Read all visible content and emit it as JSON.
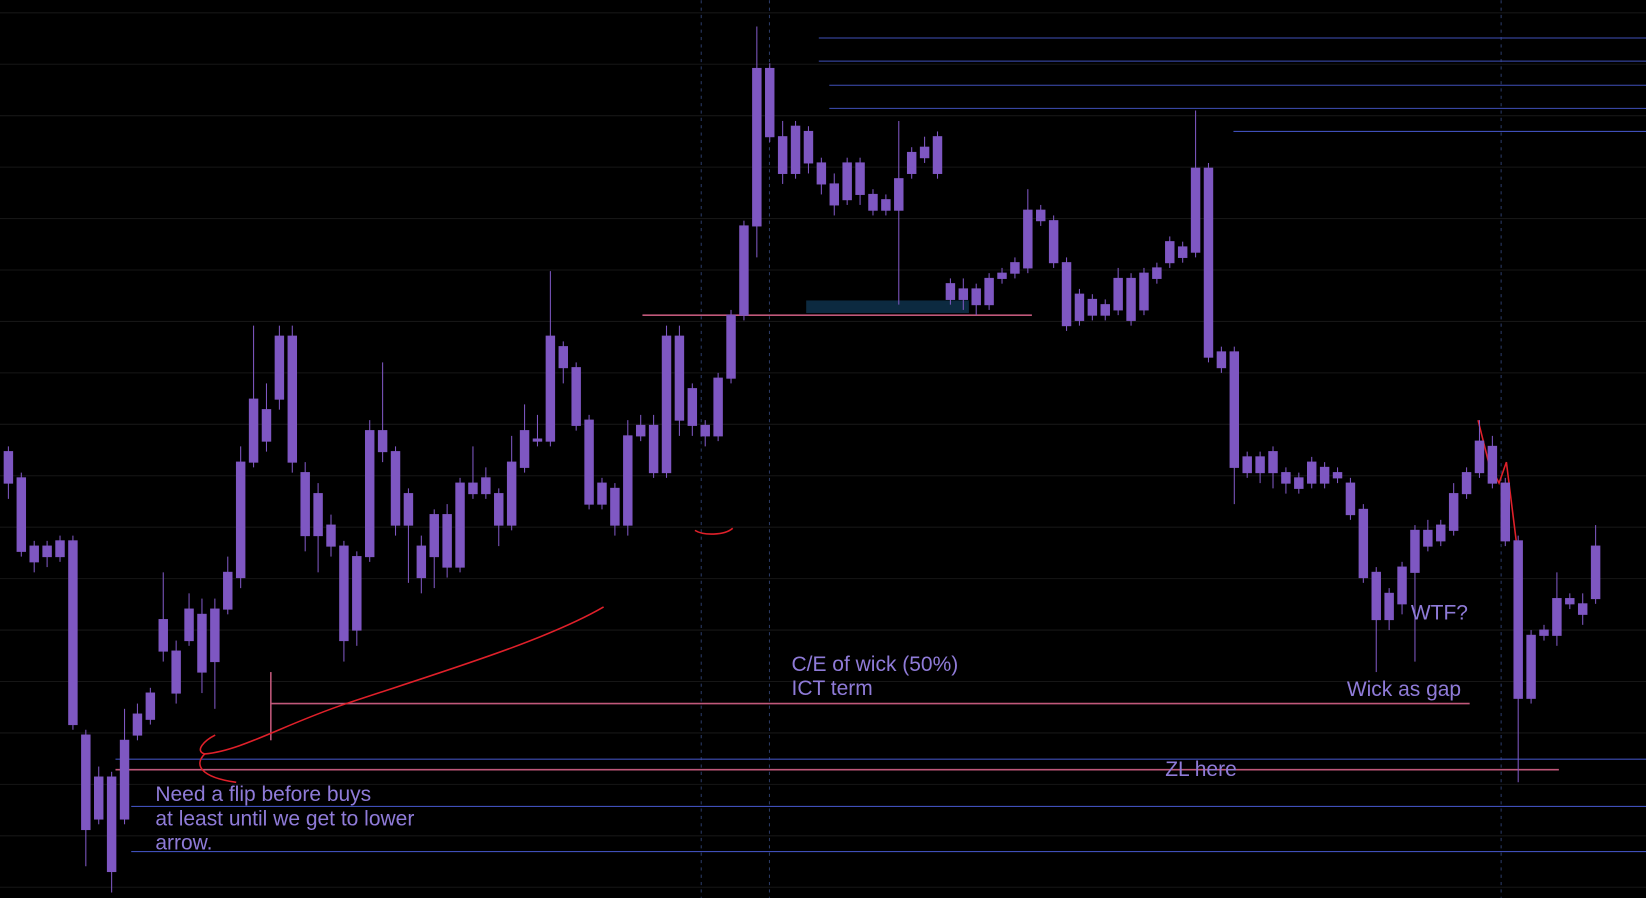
{
  "chart_data": {
    "type": "candlestick",
    "color": "#7e57c2",
    "ylim": [
      0,
      855
    ],
    "open": [
      425,
      400,
      320,
      335,
      325,
      340,
      155,
      75,
      115,
      75,
      155,
      170,
      235,
      235,
      245,
      270,
      225,
      275,
      305,
      415,
      465,
      475,
      535,
      405,
      345,
      355,
      335,
      255,
      325,
      445,
      425,
      385,
      335,
      325,
      365,
      315,
      395,
      385,
      385,
      355,
      410,
      435,
      435,
      525,
      505,
      455,
      375,
      390,
      355,
      440,
      450,
      405,
      535,
      450,
      450,
      440,
      495,
      555,
      640,
      790,
      725,
      690,
      730,
      700,
      680,
      665,
      700,
      670,
      655,
      655,
      690,
      705,
      690,
      585,
      570,
      580,
      565,
      590,
      595,
      600,
      655,
      645,
      605,
      550,
      570,
      555,
      560,
      590,
      560,
      590,
      605,
      620,
      615,
      695,
      520,
      520,
      405,
      420,
      405,
      405,
      400,
      395,
      410,
      400,
      395,
      370,
      310,
      265,
      280,
      310,
      350,
      340,
      350,
      385,
      405,
      430,
      395,
      340,
      190,
      250,
      250,
      285,
      280,
      285
    ],
    "high": [
      430,
      405,
      340,
      340,
      345,
      345,
      160,
      125,
      120,
      180,
      185,
      200,
      310,
      245,
      290,
      285,
      285,
      325,
      430,
      545,
      490,
      545,
      545,
      415,
      395,
      365,
      340,
      330,
      455,
      510,
      430,
      390,
      345,
      370,
      375,
      400,
      430,
      410,
      390,
      440,
      470,
      460,
      597,
      530,
      510,
      460,
      400,
      395,
      455,
      460,
      460,
      545,
      545,
      490,
      455,
      500,
      560,
      645,
      830,
      795,
      740,
      740,
      735,
      705,
      690,
      705,
      705,
      675,
      670,
      740,
      715,
      725,
      730,
      590,
      590,
      585,
      595,
      600,
      610,
      675,
      660,
      650,
      610,
      580,
      575,
      570,
      600,
      595,
      600,
      605,
      630,
      625,
      750,
      700,
      525,
      525,
      425,
      425,
      430,
      410,
      405,
      420,
      415,
      410,
      400,
      375,
      315,
      295,
      320,
      355,
      360,
      360,
      395,
      410,
      455,
      440,
      400,
      345,
      255,
      260,
      310,
      290,
      290,
      355
    ],
    "low": [
      380,
      325,
      310,
      315,
      320,
      160,
      30,
      70,
      5,
      70,
      150,
      165,
      225,
      185,
      240,
      195,
      180,
      270,
      295,
      410,
      425,
      465,
      405,
      330,
      310,
      325,
      225,
      240,
      320,
      415,
      345,
      300,
      290,
      295,
      305,
      310,
      380,
      380,
      335,
      350,
      405,
      430,
      430,
      490,
      445,
      370,
      370,
      345,
      345,
      435,
      400,
      400,
      440,
      440,
      430,
      435,
      490,
      550,
      610,
      720,
      680,
      685,
      690,
      670,
      650,
      660,
      660,
      650,
      650,
      565,
      685,
      700,
      685,
      565,
      560,
      555,
      560,
      585,
      590,
      595,
      640,
      600,
      540,
      545,
      550,
      550,
      555,
      545,
      555,
      585,
      600,
      605,
      610,
      510,
      500,
      375,
      400,
      395,
      390,
      385,
      385,
      390,
      390,
      395,
      360,
      300,
      215,
      255,
      270,
      225,
      330,
      335,
      345,
      380,
      400,
      390,
      335,
      110,
      185,
      245,
      240,
      275,
      260,
      280
    ],
    "close": [
      395,
      330,
      335,
      325,
      340,
      165,
      65,
      115,
      25,
      150,
      175,
      195,
      265,
      195,
      275,
      215,
      275,
      310,
      415,
      475,
      435,
      535,
      415,
      345,
      385,
      335,
      245,
      325,
      445,
      425,
      355,
      355,
      305,
      365,
      315,
      395,
      385,
      400,
      355,
      415,
      445,
      437,
      535,
      505,
      450,
      375,
      395,
      355,
      440,
      450,
      405,
      535,
      455,
      485,
      440,
      495,
      555,
      640,
      790,
      725,
      690,
      735,
      700,
      680,
      660,
      700,
      670,
      655,
      665,
      685,
      710,
      715,
      725,
      570,
      580,
      565,
      590,
      595,
      605,
      655,
      645,
      605,
      545,
      575,
      555,
      565,
      590,
      550,
      595,
      600,
      625,
      610,
      695,
      515,
      505,
      410,
      420,
      405,
      425,
      395,
      390,
      415,
      395,
      405,
      365,
      305,
      265,
      290,
      315,
      350,
      335,
      355,
      385,
      405,
      435,
      395,
      340,
      190,
      250,
      255,
      285,
      280,
      270,
      335
    ],
    "annotations": [
      "C/E  of wick (50%)",
      "ICT term",
      "Wick as gap",
      "ZL here",
      "Need a flip before buys",
      "at least until we get to lower",
      "arrow.",
      "WTF?"
    ]
  }
}
